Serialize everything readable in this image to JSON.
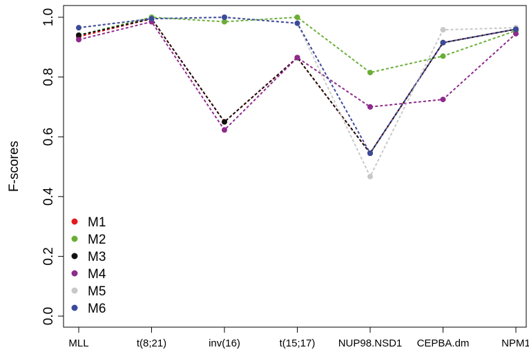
{
  "chart_data": {
    "type": "line",
    "ylabel": "F-scores",
    "xlabel": "",
    "categories": [
      "MLL",
      "t(8;21)",
      "inv(16)",
      "t(15;17)",
      "NUP98.NSD1",
      "CEPBA.dm",
      "NPM1"
    ],
    "ylim": [
      0.0,
      1.0
    ],
    "yticks": [
      "0.0",
      "0.2",
      "0.4",
      "0.6",
      "0.8",
      "1.0"
    ],
    "line_style": "dashed",
    "legend_position": "bottom-left",
    "series": [
      {
        "name": "M1",
        "color": "#e41a1c",
        "values": [
          0.935,
          0.995,
          0.65,
          0.865,
          0.545,
          0.915,
          0.96
        ]
      },
      {
        "name": "M2",
        "color": "#6aae35",
        "values": [
          0.94,
          1.0,
          0.985,
          1.0,
          0.815,
          0.87,
          0.955
        ]
      },
      {
        "name": "M3",
        "color": "#111111",
        "values": [
          0.94,
          0.995,
          0.65,
          0.865,
          0.545,
          0.915,
          0.96
        ]
      },
      {
        "name": "M4",
        "color": "#8e2a8c",
        "values": [
          0.925,
          0.985,
          0.623,
          0.865,
          0.7,
          0.725,
          0.945
        ]
      },
      {
        "name": "M5",
        "color": "#c8c8c8",
        "values": [
          0.965,
          0.995,
          1.0,
          0.98,
          0.467,
          0.958,
          0.965
        ]
      },
      {
        "name": "M6",
        "color": "#3b4a9a",
        "values": [
          0.965,
          0.995,
          1.0,
          0.98,
          0.545,
          0.915,
          0.96
        ]
      }
    ]
  }
}
